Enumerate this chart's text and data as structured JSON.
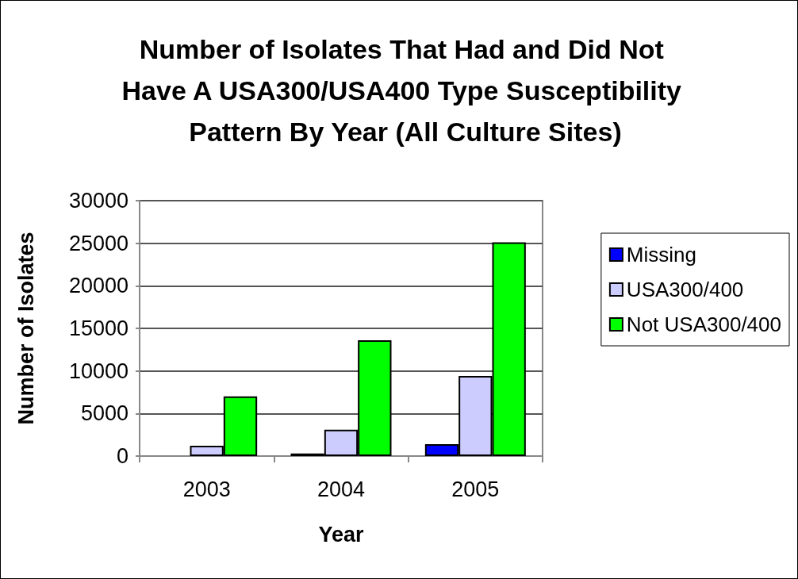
{
  "chart_data": {
    "type": "bar",
    "title": "Number of Isolates That Had and Did Not Have A USA300/USA400 Type Susceptibility Pattern By Year (All Culture Sites)",
    "xlabel": "Year",
    "ylabel": "Number of Isolates",
    "categories": [
      "2003",
      "2004",
      "2005"
    ],
    "series": [
      {
        "name": "Missing",
        "color": "#0000ff",
        "values": [
          null,
          300,
          1400
        ]
      },
      {
        "name": "USA300/400",
        "color": "#ccccff",
        "values": [
          1200,
          3100,
          9400
        ]
      },
      {
        "name": "Not USA300/400",
        "color": "#00ff00",
        "values": [
          7000,
          13600,
          25100
        ]
      }
    ],
    "ylim": [
      0,
      30000
    ],
    "yticks": [
      0,
      5000,
      10000,
      15000,
      20000,
      25000,
      30000
    ],
    "grid": "y",
    "legend": "right"
  }
}
